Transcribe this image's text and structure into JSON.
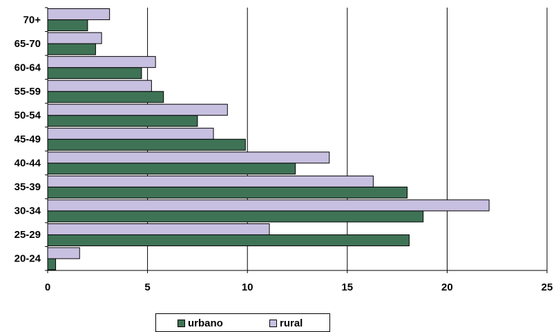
{
  "chart_data": {
    "type": "bar",
    "orientation": "horizontal",
    "categories": [
      "20-24",
      "25-29",
      "30-34",
      "35-39",
      "40-44",
      "45-49",
      "50-54",
      "55-59",
      "60-64",
      "65-70",
      "70+"
    ],
    "series": [
      {
        "name": "urbano",
        "color": "#3f7356",
        "values": [
          0.4,
          18.1,
          18.8,
          18.0,
          12.4,
          9.9,
          7.5,
          5.8,
          4.7,
          2.4,
          2.0
        ]
      },
      {
        "name": "rural",
        "color": "#c8c0e0",
        "values": [
          1.6,
          11.1,
          22.1,
          16.3,
          14.1,
          8.3,
          9.0,
          5.2,
          5.4,
          2.7,
          3.1
        ]
      }
    ],
    "xlim": [
      0,
      25
    ],
    "xticks": [
      0,
      5,
      10,
      15,
      20,
      25
    ],
    "grid": true,
    "legend": "bottom"
  }
}
